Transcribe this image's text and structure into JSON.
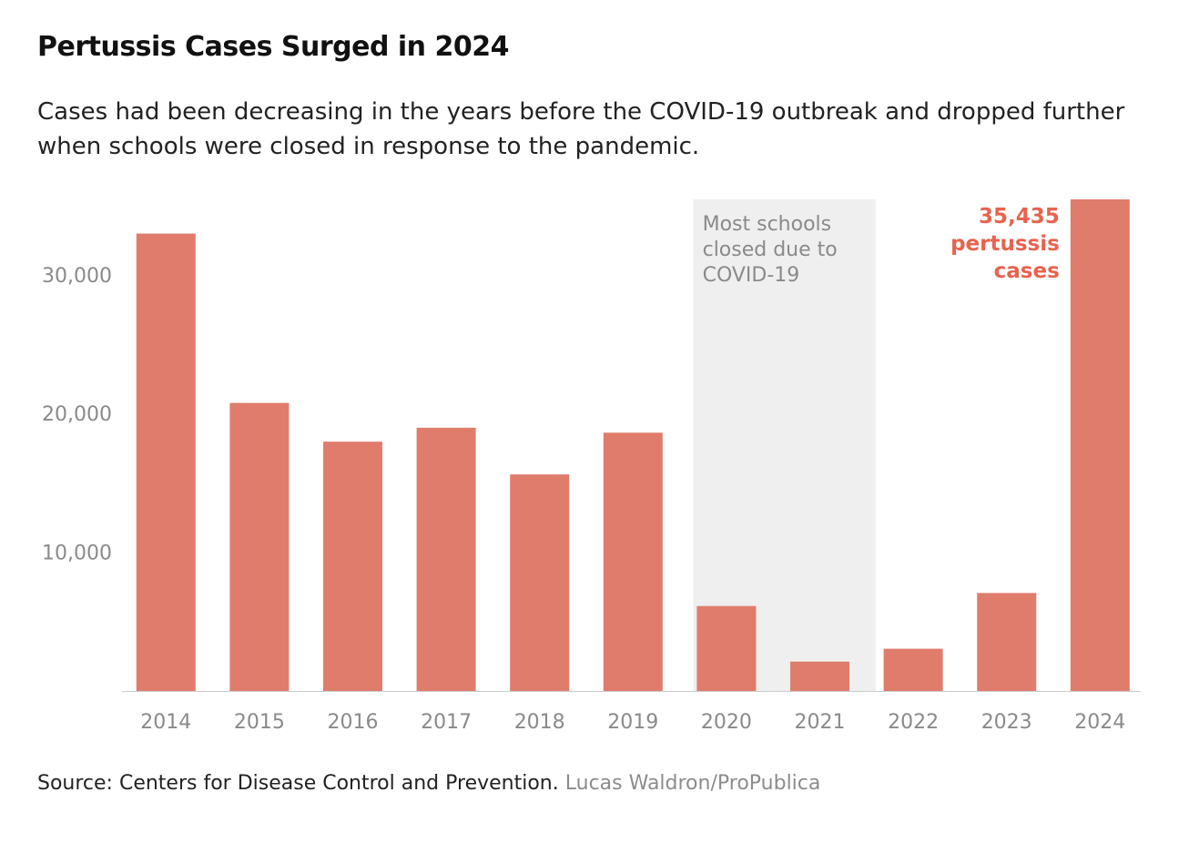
{
  "chart_data": {
    "type": "bar",
    "title": "Pertussis Cases Surged in 2024",
    "subtitle": "Cases had been decreasing in the years before the COVID-19 outbreak and dropped further when schools were closed in response to the pandemic.",
    "categories": [
      "2014",
      "2015",
      "2016",
      "2017",
      "2018",
      "2019",
      "2020",
      "2021",
      "2022",
      "2023",
      "2024"
    ],
    "values": [
      32971,
      20762,
      17972,
      18975,
      15609,
      18617,
      6124,
      2116,
      3044,
      7063,
      35435
    ],
    "ylim": [
      0,
      35435
    ],
    "yticks": [
      10000,
      20000,
      30000
    ],
    "ytick_labels": [
      "10,000",
      "20,000",
      "30,000"
    ],
    "xlabel": "",
    "ylabel": "",
    "grid": false,
    "bar_color": "#e07c6c",
    "highlight_color": "#e8634e",
    "shade_color": "#efefef",
    "shade": {
      "from": "2020",
      "to": "2021",
      "label_lines": [
        "Most schools",
        "closed due to",
        "COVID-19"
      ]
    },
    "annotation": {
      "category": "2024",
      "lines": [
        "35,435",
        "pertussis",
        "cases"
      ]
    }
  },
  "footer": {
    "source": "Source: Centers for Disease Control and Prevention.",
    "credit": "Lucas Waldron/ProPublica"
  }
}
